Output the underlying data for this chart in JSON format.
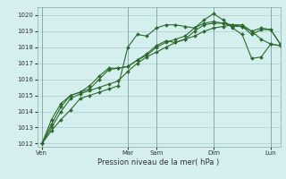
{
  "title": "",
  "xlabel": "Pression niveau de la mer( hPa )",
  "ylabel": "",
  "bg_color": "#d5eeee",
  "grid_color": "#aacccc",
  "line_color": "#2d6a2d",
  "ylim": [
    1011.8,
    1020.5
  ],
  "yticks": [
    1012,
    1013,
    1014,
    1015,
    1016,
    1017,
    1018,
    1019,
    1020
  ],
  "day_labels": [
    "Ven",
    "Mar",
    "Sam",
    "Dim",
    "Lun"
  ],
  "day_positions": [
    0,
    9,
    12,
    18,
    24
  ],
  "series": [
    [
      1012.0,
      1012.8,
      1013.5,
      1014.1,
      1014.8,
      1015.0,
      1015.2,
      1015.4,
      1015.6,
      1018.0,
      1018.8,
      1018.7,
      1019.2,
      1019.4,
      1019.4,
      1019.3,
      1019.2,
      1019.7,
      1020.1,
      1019.7,
      1019.2,
      1018.8,
      1017.3,
      1017.4,
      1018.2,
      1018.1
    ],
    [
      1012.0,
      1013.0,
      1014.0,
      1014.8,
      1015.1,
      1015.3,
      1015.5,
      1015.7,
      1015.9,
      1016.5,
      1017.0,
      1017.4,
      1017.7,
      1018.0,
      1018.3,
      1018.5,
      1018.7,
      1019.0,
      1019.2,
      1019.3,
      1019.4,
      1019.4,
      1019.0,
      1018.5,
      1018.2,
      1018.1
    ],
    [
      1012.0,
      1013.2,
      1014.3,
      1015.0,
      1015.2,
      1015.4,
      1016.0,
      1016.6,
      1016.7,
      1016.8,
      1017.2,
      1017.6,
      1018.1,
      1018.4,
      1018.3,
      1018.5,
      1019.0,
      1019.4,
      1019.5,
      1019.5,
      1019.3,
      1019.3,
      1018.8,
      1019.1,
      1019.1,
      1018.2
    ],
    [
      1012.0,
      1013.5,
      1014.5,
      1015.0,
      1015.2,
      1015.6,
      1016.2,
      1016.7,
      1016.7,
      1016.8,
      1017.2,
      1017.5,
      1018.0,
      1018.3,
      1018.5,
      1018.7,
      1019.2,
      1019.5,
      1019.6,
      1019.5,
      1019.4,
      1019.3,
      1019.0,
      1019.2,
      1019.1,
      1018.2
    ]
  ]
}
